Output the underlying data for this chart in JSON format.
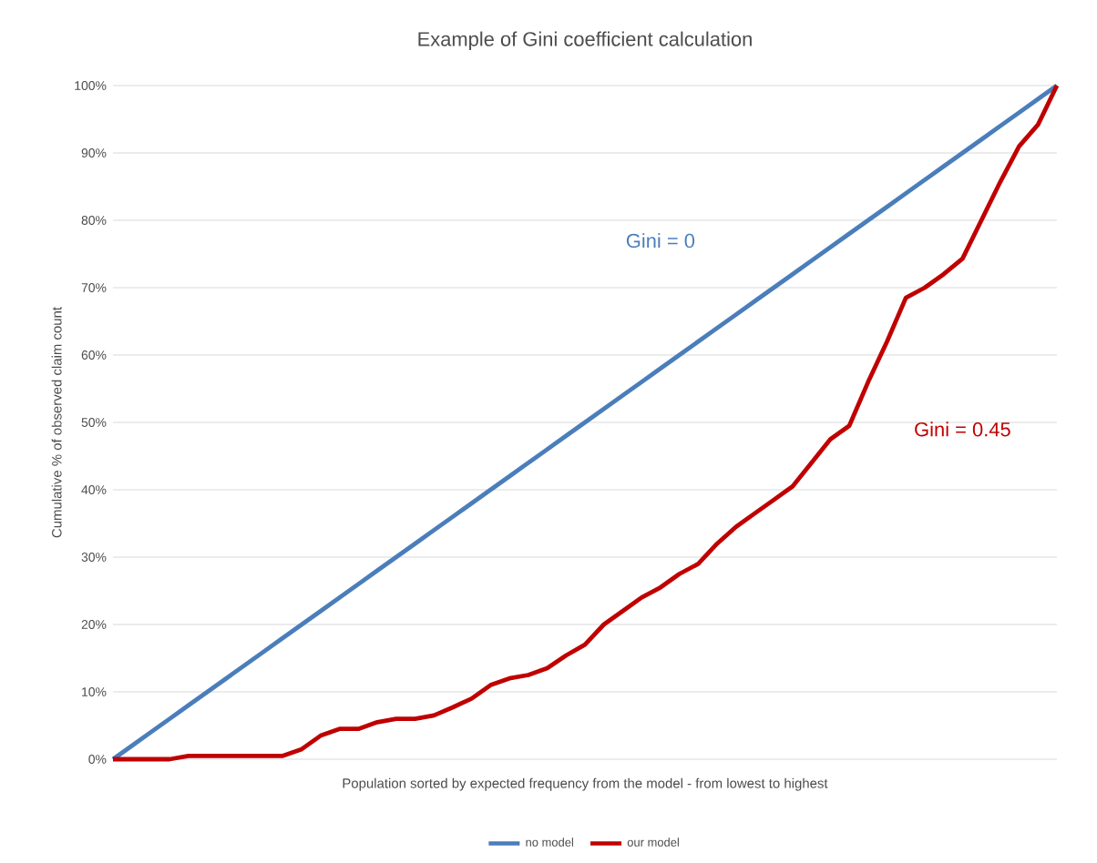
{
  "chart_data": {
    "type": "line",
    "title": "Example of Gini coefficient calculation",
    "xlabel": "Population sorted by expected frequency from the model - from lowest to highest",
    "ylabel": "Cumulative % of observed claim count",
    "categories": [
      null,
      null,
      null,
      null,
      null,
      null,
      null,
      null,
      null,
      null,
      null,
      null,
      null,
      null,
      null,
      null,
      null,
      null,
      null,
      null,
      null,
      null,
      null,
      null,
      null,
      null,
      null,
      null,
      null,
      null,
      null,
      null,
      null,
      null,
      null,
      null,
      null,
      null,
      null,
      null,
      null,
      null,
      null,
      null,
      null,
      null,
      null,
      null,
      null,
      null,
      null
    ],
    "series": [
      {
        "name": "no model",
        "color": "#4a7ebb",
        "values": [
          0,
          2,
          4,
          6,
          8,
          10,
          12,
          14,
          16,
          18,
          20,
          22,
          24,
          26,
          28,
          30,
          32,
          34,
          36,
          38,
          40,
          42,
          44,
          46,
          48,
          50,
          52,
          54,
          56,
          58,
          60,
          62,
          64,
          66,
          68,
          70,
          72,
          74,
          76,
          78,
          80,
          82,
          84,
          86,
          88,
          90,
          92,
          94,
          96,
          98,
          100
        ]
      },
      {
        "name": "our model",
        "color": "#c00000",
        "values": [
          0,
          0,
          0,
          0,
          0.5,
          0.5,
          0.5,
          0.5,
          0.5,
          0.5,
          1.5,
          3.5,
          4.5,
          4.5,
          5.5,
          6,
          6,
          6.5,
          7.7,
          9,
          11,
          12,
          12.5,
          13.5,
          15.4,
          17,
          20,
          22,
          24,
          25.5,
          27.5,
          29,
          32,
          34.5,
          36.5,
          38.5,
          40.5,
          44,
          47.5,
          49.5,
          56,
          62,
          68.5,
          70,
          72,
          74.3,
          80,
          85.7,
          91,
          94.2,
          100
        ]
      }
    ],
    "ylim": [
      0,
      100
    ],
    "yticks": [
      {
        "value": 0,
        "label": "0%"
      },
      {
        "value": 10,
        "label": "10%"
      },
      {
        "value": 20,
        "label": "20%"
      },
      {
        "value": 30,
        "label": "30%"
      },
      {
        "value": 40,
        "label": "40%"
      },
      {
        "value": 50,
        "label": "50%"
      },
      {
        "value": 60,
        "label": "60%"
      },
      {
        "value": 70,
        "label": "70%"
      },
      {
        "value": 80,
        "label": "80%"
      },
      {
        "value": 90,
        "label": "90%"
      },
      {
        "value": 100,
        "label": "100%"
      }
    ],
    "grid": "y",
    "legend": "bottom",
    "annotations": [
      "Gini = 0",
      "Gini = 0.45"
    ]
  }
}
